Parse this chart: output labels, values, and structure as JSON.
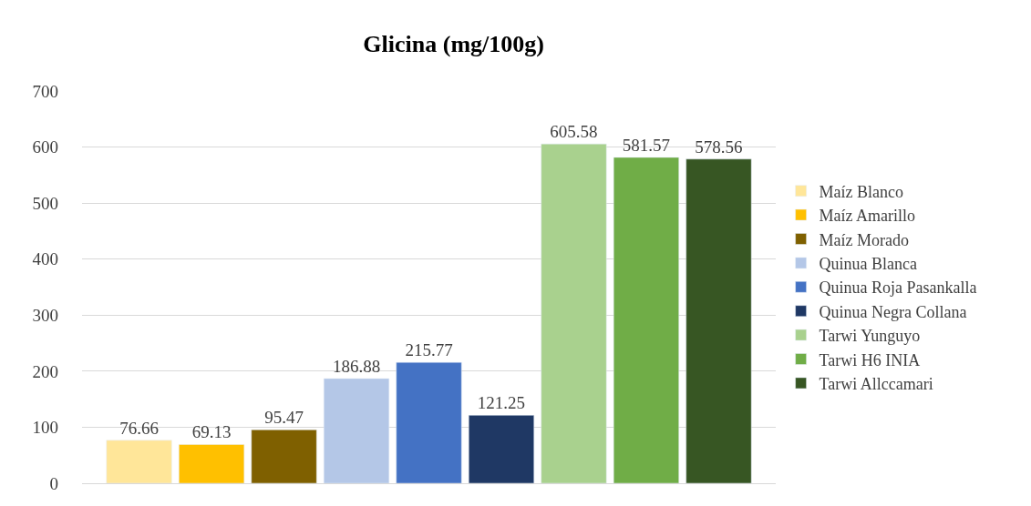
{
  "chart_data": {
    "type": "bar",
    "title": "Glicina (mg/100g)",
    "categories": [
      null
    ],
    "ylim": [
      0,
      700
    ],
    "yticks": [
      0,
      100,
      200,
      300,
      400,
      500,
      600,
      700
    ],
    "grid": "y",
    "legend": "right",
    "data_labels": true,
    "series": [
      {
        "name": "Maíz Blanco",
        "color": "#ffe699",
        "values": [
          76.66
        ]
      },
      {
        "name": "Maíz Amarillo",
        "color": "#ffc000",
        "values": [
          69.13
        ]
      },
      {
        "name": "Maíz Morado",
        "color": "#7f6000",
        "values": [
          95.47
        ]
      },
      {
        "name": "Quinua Blanca",
        "color": "#b4c7e7",
        "values": [
          186.88
        ]
      },
      {
        "name": "Quinua Roja Pasankalla",
        "color": "#4472c4",
        "values": [
          215.77
        ]
      },
      {
        "name": "Quinua Negra Collana",
        "color": "#1f3864",
        "values": [
          121.25
        ]
      },
      {
        "name": "Tarwi Yunguyo",
        "color": "#a9d18e",
        "values": [
          605.58
        ]
      },
      {
        "name": "Tarwi H6 INIA",
        "color": "#70ad47",
        "values": [
          581.57
        ]
      },
      {
        "name": "Tarwi Allccamari",
        "color": "#375623",
        "values": [
          578.56
        ]
      }
    ]
  }
}
